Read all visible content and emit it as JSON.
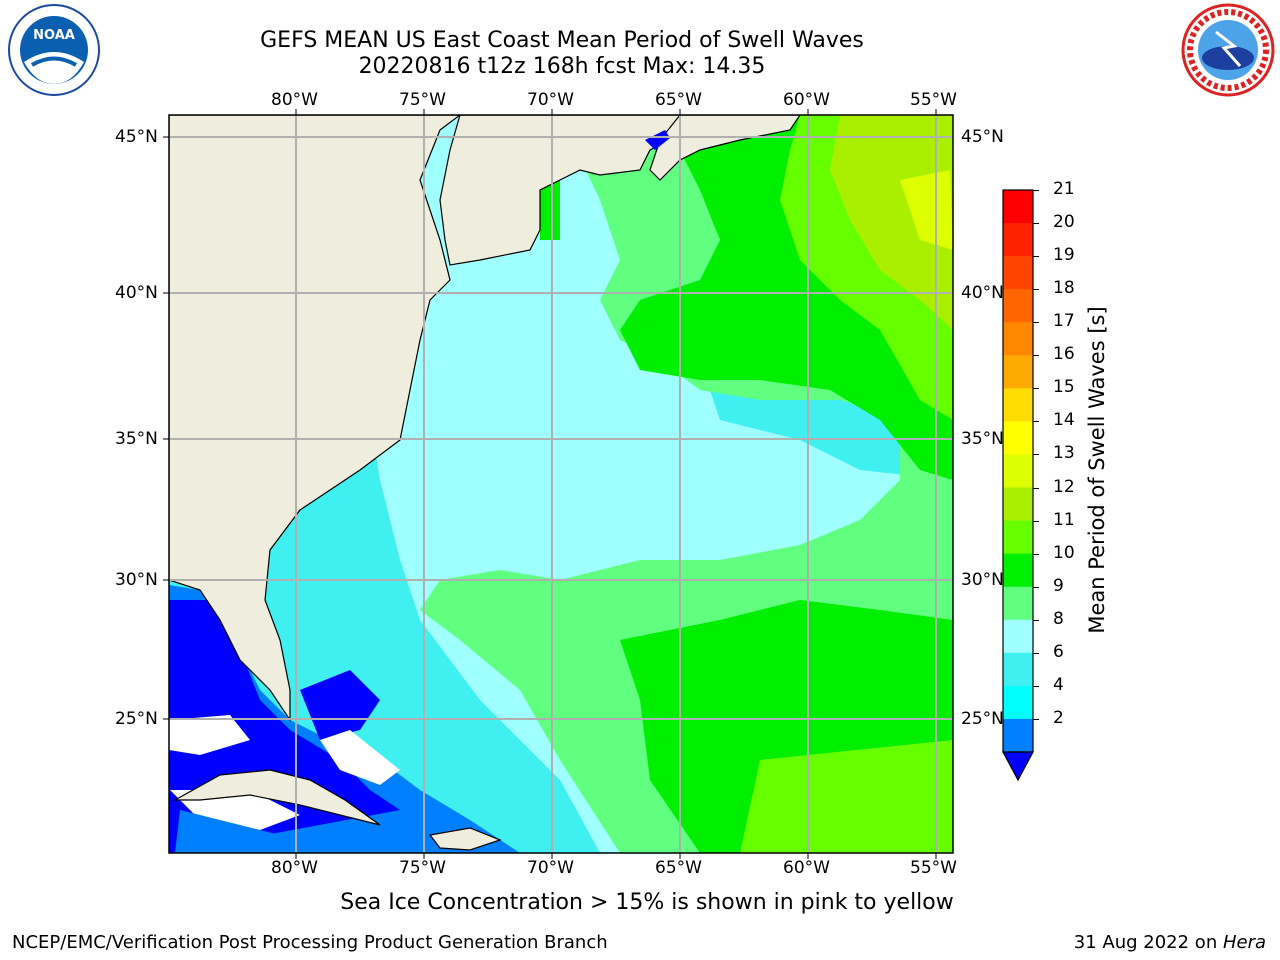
{
  "title": {
    "line1": "GEFS MEAN US East Coast Mean Period of Swell Waves",
    "line2": "20220816 t12z 168h fcst   Max: 14.35"
  },
  "map": {
    "lon_labels": [
      "80°W",
      "75°W",
      "70°W",
      "65°W",
      "60°W",
      "55°W"
    ],
    "lat_labels": [
      "45°N",
      "40°N",
      "35°N",
      "30°N",
      "25°N"
    ],
    "colors": {
      "land": "#efedde",
      "grid": "#b0b0b0",
      "c2": "#0000ff",
      "c4": "#0080ff",
      "c6": "#00ffff",
      "c8": "#40f0f0",
      "c9": "#a0ffff",
      "c10": "#60ff80",
      "c11": "#00ee00",
      "c12": "#66ff00",
      "c13": "#aaee00",
      "c14": "#ddff00"
    }
  },
  "colorbar": {
    "label": "Mean Period of Swell Waves [s]",
    "ticks": [
      "21",
      "20",
      "19",
      "18",
      "17",
      "16",
      "15",
      "14",
      "13",
      "12",
      "11",
      "10",
      "9",
      "8",
      "6",
      "4",
      "2"
    ],
    "colors": [
      "#ff0000",
      "#ff2200",
      "#ff4400",
      "#ff6600",
      "#ff8800",
      "#ffaa00",
      "#ffdd00",
      "#ffff00",
      "#ddff00",
      "#aaee00",
      "#66ff00",
      "#00ee00",
      "#60ff80",
      "#a0ffff",
      "#40f0f0",
      "#00ffff",
      "#0080ff"
    ],
    "extend_color": "#0000ff"
  },
  "caption": "Sea Ice Concentration > 15% is shown in pink to yellow",
  "footer": {
    "left": "NCEP/EMC/Verification Post Processing Product Generation Branch",
    "right_date": "31 Aug 2022 on ",
    "right_machine": "Hera"
  },
  "logos": {
    "noaa": "NOAA",
    "nws": "NATIONAL WEATHER SERVICE"
  }
}
